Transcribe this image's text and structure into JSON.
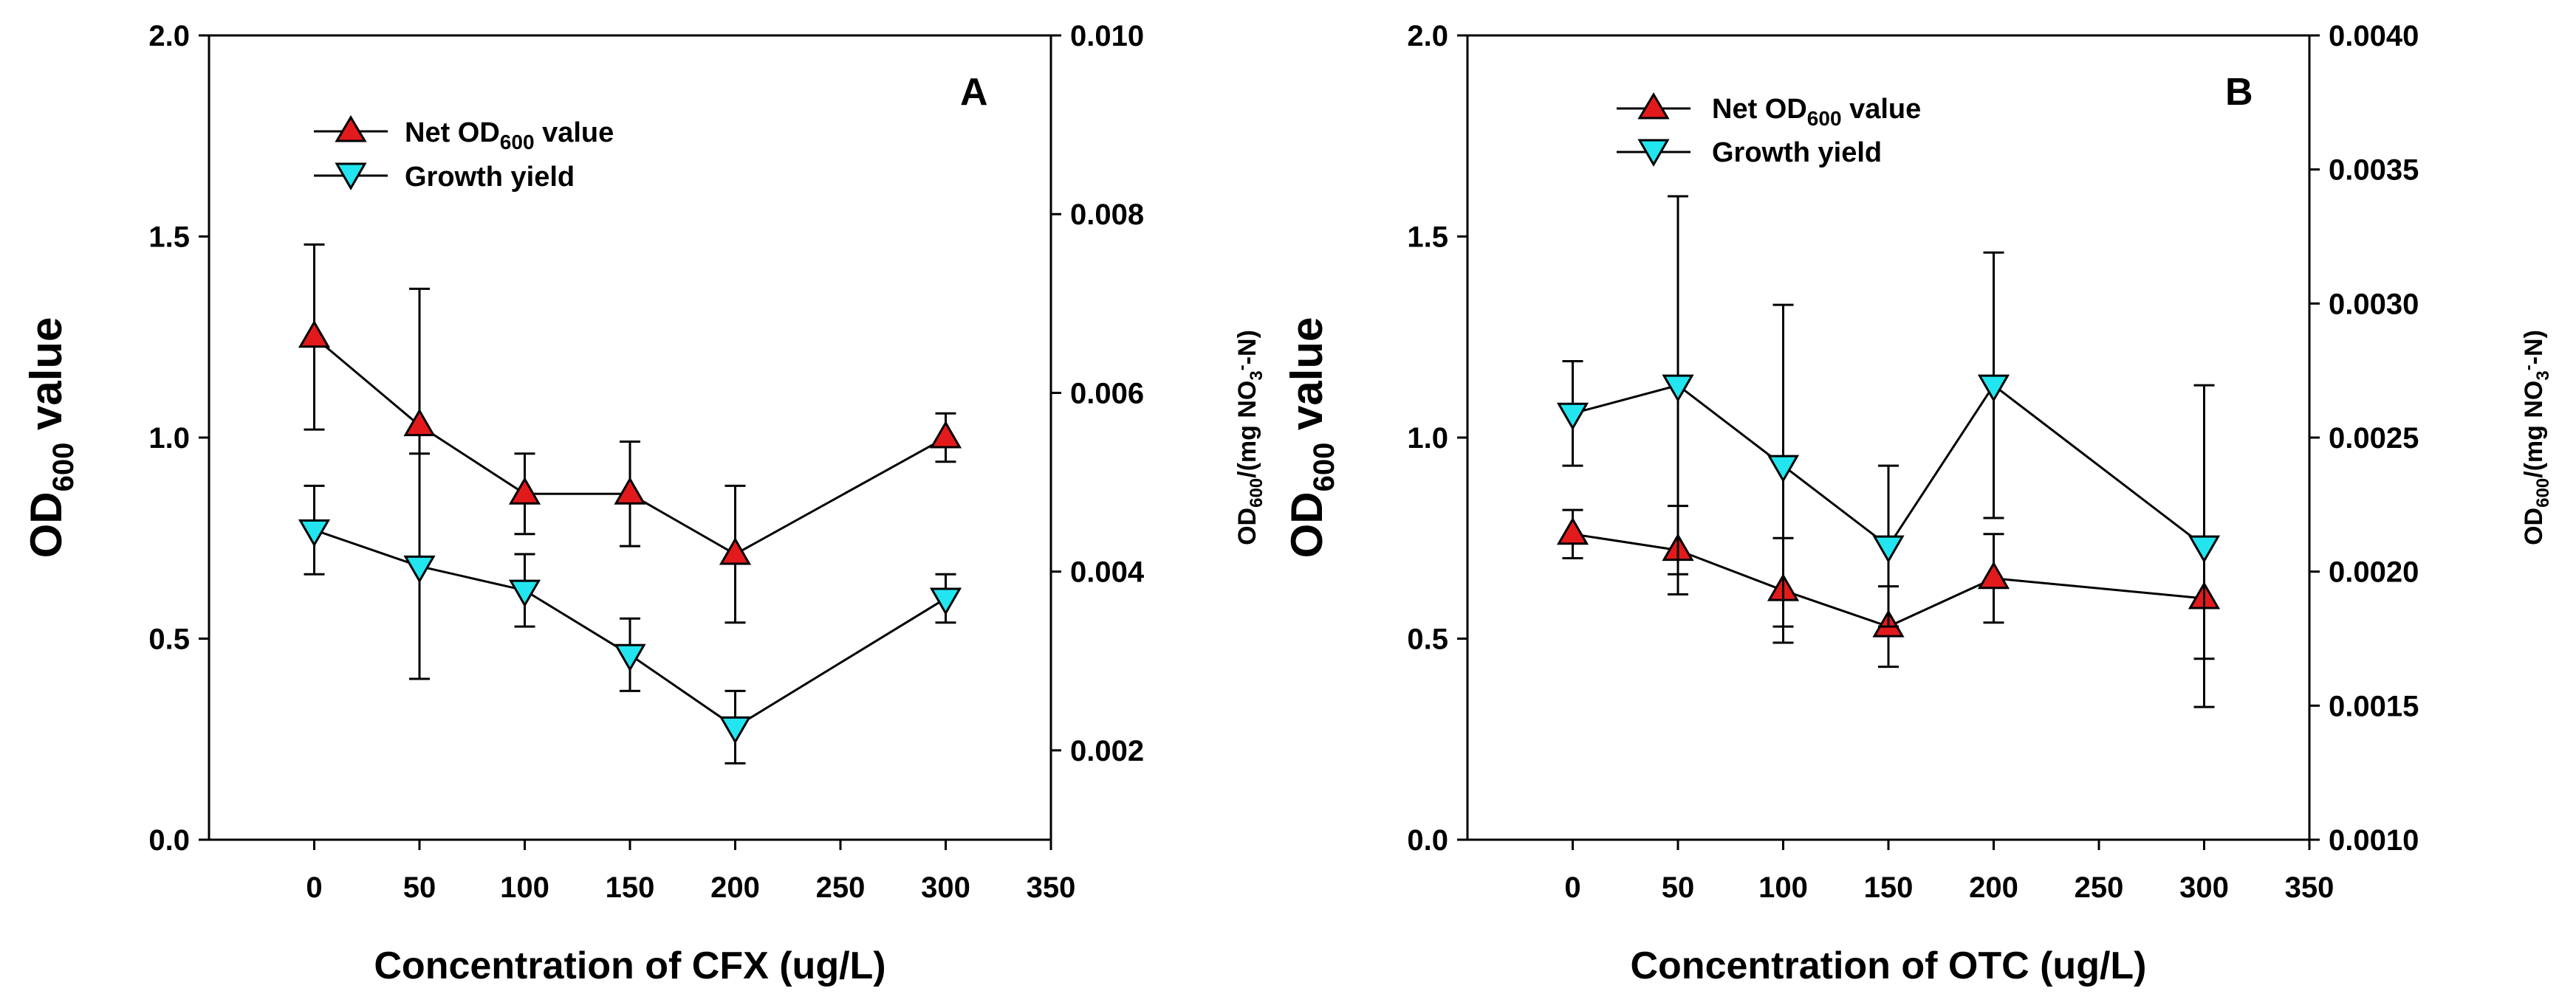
{
  "colors": {
    "net": "#e31a1c",
    "growth": "#22e5f0",
    "axis": "#000000"
  },
  "chart_data": [
    {
      "type": "line",
      "panel": "A",
      "xlabel": "Concentration of CFX (ug/L)",
      "ylabel_main": "OD",
      "ylabel_sub": "600",
      "ylabel_tail": " value",
      "y2label_a": "OD",
      "y2label_b": "600",
      "y2label_c": "/(mg NO",
      "y2label_d": "3",
      "y2label_e": "-",
      "y2label_f": "-N)",
      "xlim": [
        -50,
        350
      ],
      "ylim": [
        0,
        2.0
      ],
      "y2lim": [
        0.001,
        0.01
      ],
      "xticks": [
        "0",
        "50",
        "100",
        "150",
        "200",
        "250",
        "300",
        "350"
      ],
      "xtick_values": [
        0,
        50,
        100,
        150,
        200,
        250,
        300,
        350
      ],
      "yticks": [
        "0.0",
        "0.5",
        "1.0",
        "1.5",
        "2.0"
      ],
      "ytick_values": [
        0,
        0.5,
        1.0,
        1.5,
        2.0
      ],
      "y2ticks": [
        "0.002",
        "0.004",
        "0.006",
        "0.008",
        "0.010"
      ],
      "y2tick_values": [
        0.002,
        0.004,
        0.006,
        0.008,
        0.01
      ],
      "legend": {
        "net_a": "Net OD",
        "net_b": "600",
        "net_c": " value",
        "growth": "Growth yield"
      },
      "series": [
        {
          "name": "Net OD600 value",
          "marker": "triangle-up",
          "x": [
            0,
            50,
            100,
            150,
            200,
            300
          ],
          "y": [
            1.25,
            1.03,
            0.86,
            0.86,
            0.71,
            1.0
          ],
          "err": [
            0.23,
            0.34,
            0.1,
            0.13,
            0.17,
            0.06
          ]
        },
        {
          "name": "Growth yield",
          "marker": "triangle-down",
          "x": [
            0,
            50,
            100,
            150,
            200,
            300
          ],
          "y": [
            0.77,
            0.68,
            0.62,
            0.46,
            0.28,
            0.6
          ],
          "err": [
            0.11,
            0.28,
            0.09,
            0.09,
            0.09,
            0.06
          ]
        }
      ]
    },
    {
      "type": "line",
      "panel": "B",
      "xlabel": "Concentration of OTC (ug/L)",
      "ylabel_main": "OD",
      "ylabel_sub": "600",
      "ylabel_tail": " value",
      "y2label_a": "OD",
      "y2label_b": "600",
      "y2label_c": "/(mg NO",
      "y2label_d": "3",
      "y2label_e": "-",
      "y2label_f": "-N)",
      "xlim": [
        -50,
        350
      ],
      "ylim": [
        0,
        2.0
      ],
      "y2lim": [
        0.001,
        0.004
      ],
      "xticks": [
        "0",
        "50",
        "100",
        "150",
        "200",
        "250",
        "300",
        "350"
      ],
      "xtick_values": [
        0,
        50,
        100,
        150,
        200,
        250,
        300,
        350
      ],
      "yticks": [
        "0.0",
        "0.5",
        "1.0",
        "1.5",
        "2.0"
      ],
      "ytick_values": [
        0,
        0.5,
        1.0,
        1.5,
        2.0
      ],
      "y2ticks": [
        "0.0010",
        "0.0015",
        "0.0020",
        "0.0025",
        "0.0030",
        "0.0035",
        "0.0040"
      ],
      "y2tick_values": [
        0.001,
        0.0015,
        0.002,
        0.0025,
        0.003,
        0.0035,
        0.004
      ],
      "legend": {
        "net_a": "Net OD",
        "net_b": "600",
        "net_c": " value",
        "growth": "Growth yield"
      },
      "series": [
        {
          "name": "Net OD600 value",
          "marker": "triangle-up",
          "x": [
            0,
            50,
            100,
            150,
            200,
            300
          ],
          "y": [
            0.76,
            0.72,
            0.62,
            0.53,
            0.65,
            0.6
          ],
          "err": [
            0.06,
            0.11,
            0.13,
            0.1,
            0.11,
            0.15
          ]
        },
        {
          "name": "Growth yield",
          "marker": "triangle-down",
          "x": [
            0,
            50,
            100,
            150,
            200,
            300
          ],
          "y": [
            1.06,
            1.13,
            0.93,
            0.73,
            1.13,
            0.73
          ],
          "err": [
            0.13,
            0.47,
            0.4,
            0.2,
            0.33,
            0.4
          ]
        }
      ]
    }
  ]
}
